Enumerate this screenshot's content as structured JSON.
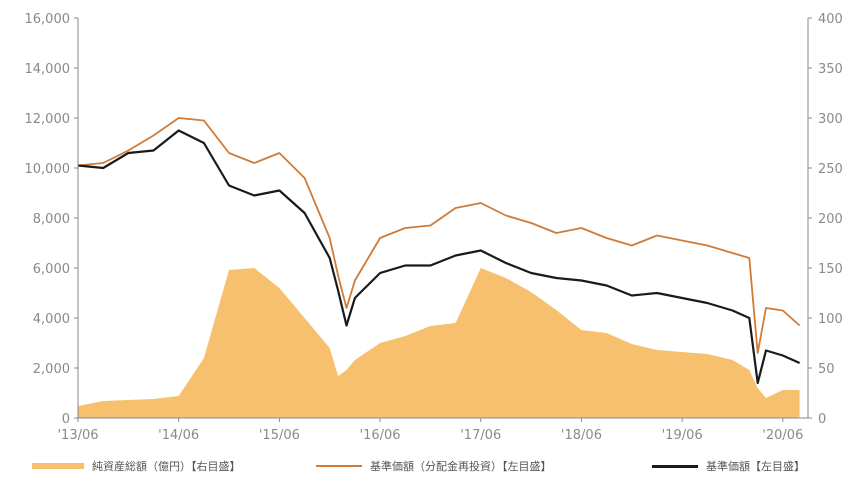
{
  "chart_data": {
    "type": "line",
    "x_tick_labels": [
      "'13/06",
      "'14/06",
      "'15/06",
      "'16/06",
      "'17/06",
      "'18/06",
      "'19/06",
      "'20/06"
    ],
    "y_left": {
      "range": [
        0,
        16000
      ],
      "ticks": [
        "0",
        "2,000",
        "4,000",
        "6,000",
        "8,000",
        "10,000",
        "12,000",
        "14,000",
        "16,000"
      ]
    },
    "y_right": {
      "range": [
        0,
        400
      ],
      "ticks": [
        "0",
        "50",
        "100",
        "150",
        "200",
        "250",
        "300",
        "350",
        "400"
      ]
    },
    "colors": {
      "net_assets": "#f7c06f",
      "reinvested": "#d07b36",
      "nav": "#1a1a1a",
      "axis": "#8a8a8a"
    },
    "grid": false,
    "legend_position": "bottom",
    "x": [
      "2013/06",
      "2013/09",
      "2013/12",
      "2014/03",
      "2014/06",
      "2014/09",
      "2014/12",
      "2015/03",
      "2015/06",
      "2015/09",
      "2015/12",
      "2016/01",
      "2016/02",
      "2016/03",
      "2016/06",
      "2016/09",
      "2016/12",
      "2017/03",
      "2017/06",
      "2017/09",
      "2017/12",
      "2018/03",
      "2018/06",
      "2018/09",
      "2018/12",
      "2019/03",
      "2019/06",
      "2019/09",
      "2019/12",
      "2020/02",
      "2020/03",
      "2020/04",
      "2020/06",
      "2020/08"
    ],
    "series": [
      {
        "name": "純資産総額（億円）【右目盛】",
        "type": "area",
        "axis": "right",
        "color": "#f7c06f",
        "values": [
          12,
          17,
          18,
          19,
          22,
          60,
          148,
          150,
          130,
          100,
          70,
          42,
          48,
          58,
          75,
          82,
          92,
          95,
          150,
          140,
          126,
          108,
          88,
          85,
          74,
          68,
          66,
          64,
          58,
          48,
          30,
          20,
          28,
          28
        ]
      },
      {
        "name": "基準価額（分配金再投資）【左目盛】",
        "type": "line",
        "axis": "left",
        "color": "#d07b36",
        "values": [
          10100,
          10200,
          10700,
          11300,
          12000,
          11900,
          10600,
          10200,
          10600,
          9600,
          7200,
          5700,
          4400,
          5500,
          7200,
          7600,
          7700,
          8400,
          8600,
          8100,
          7800,
          7400,
          7600,
          7200,
          6900,
          7300,
          7100,
          6900,
          6600,
          6400,
          2600,
          4400,
          4300,
          3700
        ]
      },
      {
        "name": "基準価額【左目盛】",
        "type": "line",
        "axis": "left",
        "color": "#1a1a1a",
        "values": [
          10100,
          10000,
          10600,
          10700,
          11500,
          11000,
          9300,
          8900,
          9100,
          8200,
          6400,
          5100,
          3700,
          4800,
          5800,
          6100,
          6100,
          6500,
          6700,
          6200,
          5800,
          5600,
          5500,
          5300,
          4900,
          5000,
          4800,
          4600,
          4300,
          4000,
          1400,
          2700,
          2500,
          2200
        ]
      }
    ]
  }
}
